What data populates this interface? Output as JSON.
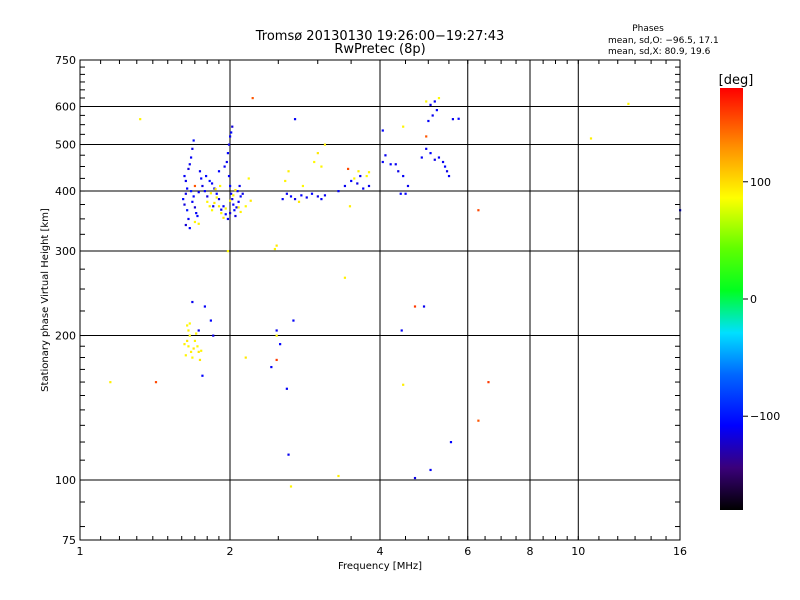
{
  "chart_data": {
    "type": "scatter",
    "title": "Tromsø 20130130 19:26:00−19:27:43",
    "subtitle": "RwPretec (8p)",
    "xlabel": "Frequency [MHz]",
    "ylabel": "Stationary phase Virtual Height [km]",
    "x_scale": "log",
    "y_scale": "log",
    "xlim": [
      1,
      16
    ],
    "ylim": [
      75,
      750
    ],
    "x_tick_labels": [
      "1",
      "2",
      "4",
      "6",
      "8",
      "10",
      "16"
    ],
    "x_tick_values": [
      1,
      2,
      4,
      6,
      8,
      10,
      16
    ],
    "y_tick_labels": [
      "75",
      "100",
      "200",
      "300",
      "400",
      "500",
      "600",
      "750"
    ],
    "y_tick_values": [
      75,
      100,
      200,
      300,
      400,
      500,
      600,
      750
    ],
    "grid": true,
    "annotations": {
      "heading": "Phases",
      "line1": "mean, sd,O: −96.5, 17.1",
      "line2": "mean, sd,X:  80.9, 19.6"
    },
    "colorbar": {
      "label": "[deg]",
      "tick_labels": [
        "100",
        "0",
        "−100"
      ],
      "tick_values": [
        100,
        0,
        -100
      ],
      "range": [
        -180,
        180
      ]
    },
    "series": [
      {
        "values": [
          [
            1.62,
            430,
            -110
          ],
          [
            1.63,
            420,
            -112
          ],
          [
            1.64,
            405,
            -108
          ],
          [
            1.63,
            395,
            -115
          ],
          [
            1.61,
            385,
            -105
          ],
          [
            1.62,
            375,
            -118
          ],
          [
            1.64,
            365,
            -100
          ],
          [
            1.65,
            350,
            -110
          ],
          [
            1.63,
            340,
            -120
          ],
          [
            1.66,
            335,
            -108
          ],
          [
            1.67,
            470,
            -110
          ],
          [
            1.68,
            490,
            -115
          ],
          [
            1.69,
            510,
            -105
          ],
          [
            1.66,
            455,
            -112
          ],
          [
            1.65,
            445,
            -118
          ],
          [
            1.67,
            400,
            -100
          ],
          [
            1.68,
            380,
            -110
          ],
          [
            1.7,
            370,
            -120
          ],
          [
            1.71,
            360,
            -110
          ],
          [
            1.72,
            355,
            -105
          ],
          [
            1.74,
            440,
            -112
          ],
          [
            1.75,
            425,
            -108
          ],
          [
            1.76,
            410,
            -115
          ],
          [
            1.78,
            400,
            -110
          ],
          [
            1.8,
            390,
            -118
          ],
          [
            1.82,
            420,
            -100
          ],
          [
            1.84,
            415,
            -110
          ],
          [
            1.86,
            405,
            -112
          ],
          [
            1.88,
            395,
            -108
          ],
          [
            1.9,
            385,
            -115
          ],
          [
            1.95,
            450,
            -110
          ],
          [
            1.97,
            460,
            -112
          ],
          [
            1.98,
            480,
            -108
          ],
          [
            1.99,
            500,
            -115
          ],
          [
            2.0,
            520,
            -110
          ],
          [
            2.01,
            530,
            -105
          ],
          [
            2.02,
            545,
            -118
          ],
          [
            1.99,
            430,
            -110
          ],
          [
            2.0,
            410,
            -108
          ],
          [
            2.01,
            395,
            -112
          ],
          [
            2.02,
            385,
            -115
          ],
          [
            2.03,
            375,
            -110
          ],
          [
            2.04,
            365,
            -105
          ],
          [
            2.05,
            355,
            -118
          ],
          [
            2.06,
            370,
            -110
          ],
          [
            2.08,
            380,
            -112
          ],
          [
            2.1,
            390,
            -108
          ],
          [
            2.12,
            395,
            -115
          ],
          [
            2.0,
            360,
            -120
          ],
          [
            1.98,
            350,
            -110
          ],
          [
            1.94,
            372,
            -110
          ],
          [
            1.92,
            366,
            -112
          ],
          [
            1.96,
            358,
            -104
          ],
          [
            2.07,
            400,
            -110
          ],
          [
            2.09,
            410,
            -112
          ],
          [
            1.73,
            398,
            -112
          ],
          [
            1.69,
            390,
            -108
          ],
          [
            1.79,
            430,
            -105
          ],
          [
            1.85,
            372,
            -112
          ],
          [
            1.9,
            440,
            -108
          ],
          [
            2.55,
            385,
            -110
          ],
          [
            2.6,
            395,
            -112
          ],
          [
            2.65,
            390,
            -108
          ],
          [
            2.7,
            385,
            -115
          ],
          [
            2.78,
            392,
            -110
          ],
          [
            2.85,
            388,
            -112
          ],
          [
            2.92,
            395,
            -108
          ],
          [
            3.0,
            390,
            -115
          ],
          [
            3.05,
            385,
            -110
          ],
          [
            3.1,
            392,
            -112
          ],
          [
            3.3,
            400,
            -110
          ],
          [
            3.4,
            410,
            -112
          ],
          [
            3.5,
            420,
            -108
          ],
          [
            3.6,
            415,
            -115
          ],
          [
            3.7,
            405,
            -110
          ],
          [
            3.8,
            410,
            -112
          ],
          [
            4.05,
            460,
            -110
          ],
          [
            4.1,
            475,
            -112
          ],
          [
            4.2,
            455,
            -108
          ],
          [
            4.35,
            440,
            -115
          ],
          [
            4.45,
            430,
            -110
          ],
          [
            4.55,
            410,
            -112
          ],
          [
            4.4,
            395,
            -108
          ],
          [
            4.85,
            470,
            -110
          ],
          [
            4.95,
            490,
            -112
          ],
          [
            5.05,
            480,
            -108
          ],
          [
            5.15,
            465,
            -115
          ],
          [
            5.25,
            470,
            -110
          ],
          [
            5.35,
            460,
            -112
          ],
          [
            5.4,
            450,
            -108
          ],
          [
            5.45,
            440,
            -115
          ],
          [
            5.5,
            430,
            -110
          ],
          [
            5.0,
            560,
            -110
          ],
          [
            5.1,
            575,
            -112
          ],
          [
            5.2,
            590,
            -108
          ],
          [
            5.05,
            605,
            -115
          ],
          [
            5.15,
            615,
            -110
          ],
          [
            5.6,
            565,
            -112
          ],
          [
            5.75,
            566,
            -108
          ],
          [
            1.78,
            230,
            -110
          ],
          [
            1.68,
            235,
            -112
          ],
          [
            1.83,
            215,
            -108
          ],
          [
            1.73,
            205,
            -115
          ],
          [
            2.68,
            215,
            -110
          ],
          [
            2.48,
            205,
            -112
          ],
          [
            2.52,
            192,
            -108
          ],
          [
            2.42,
            172,
            -110
          ],
          [
            4.42,
            205,
            -110
          ],
          [
            4.9,
            230,
            -112
          ],
          [
            5.55,
            120,
            -108
          ],
          [
            5.05,
            105,
            -110
          ],
          [
            4.7,
            101,
            -115
          ],
          [
            2.62,
            113,
            -112
          ],
          [
            2.6,
            155,
            -110
          ],
          [
            1.76,
            165,
            -108
          ],
          [
            2.7,
            565,
            -110
          ],
          [
            3.65,
            430,
            -112
          ],
          [
            4.05,
            535,
            -108
          ],
          [
            4.5,
            395,
            -110
          ],
          [
            4.3,
            455,
            -112
          ],
          [
            1.85,
            200,
            -115
          ],
          [
            16.0,
            365,
            -110
          ]
        ]
      },
      {
        "values": [
          [
            1.64,
            210,
            90
          ],
          [
            1.65,
            205,
            92
          ],
          [
            1.66,
            200,
            88
          ],
          [
            1.64,
            195,
            95
          ],
          [
            1.65,
            190,
            90
          ],
          [
            1.67,
            185,
            92
          ],
          [
            1.68,
            180,
            88
          ],
          [
            1.69,
            188,
            95
          ],
          [
            1.7,
            195,
            90
          ],
          [
            1.71,
            202,
            92
          ],
          [
            1.72,
            190,
            88
          ],
          [
            1.73,
            185,
            95
          ],
          [
            1.63,
            182,
            90
          ],
          [
            1.62,
            192,
            92
          ],
          [
            1.66,
            212,
            88
          ],
          [
            1.74,
            178,
            95
          ],
          [
            1.75,
            186,
            90
          ],
          [
            1.8,
            380,
            90
          ],
          [
            1.82,
            372,
            92
          ],
          [
            1.84,
            365,
            88
          ],
          [
            1.86,
            378,
            95
          ],
          [
            1.88,
            388,
            90
          ],
          [
            1.9,
            372,
            92
          ],
          [
            1.92,
            360,
            88
          ],
          [
            1.94,
            352,
            95
          ],
          [
            1.96,
            368,
            90
          ],
          [
            2.0,
            382,
            92
          ],
          [
            2.03,
            392,
            88
          ],
          [
            2.05,
            402,
            95
          ],
          [
            2.08,
            370,
            90
          ],
          [
            2.1,
            362,
            92
          ],
          [
            2.15,
            372,
            88
          ],
          [
            2.2,
            382,
            95
          ],
          [
            1.83,
            396,
            90
          ],
          [
            1.87,
            404,
            92
          ],
          [
            1.91,
            410,
            88
          ],
          [
            2.58,
            420,
            90
          ],
          [
            2.62,
            440,
            92
          ],
          [
            2.95,
            460,
            88
          ],
          [
            3.0,
            480,
            95
          ],
          [
            3.05,
            450,
            90
          ],
          [
            3.1,
            500,
            92
          ],
          [
            2.8,
            410,
            88
          ],
          [
            2.75,
            380,
            95
          ],
          [
            3.55,
            425,
            90
          ],
          [
            3.62,
            440,
            92
          ],
          [
            1.7,
            345,
            90
          ],
          [
            1.73,
            342,
            92
          ],
          [
            2.18,
            425,
            88
          ],
          [
            2.48,
            308,
            95
          ],
          [
            2.46,
            303,
            90
          ],
          [
            3.4,
            264,
            92
          ],
          [
            3.8,
            438,
            90
          ],
          [
            3.76,
            430,
            88
          ],
          [
            3.48,
            372,
            92
          ],
          [
            4.45,
            545,
            90
          ],
          [
            4.45,
            158,
            92
          ],
          [
            5.25,
            625,
            88
          ],
          [
            1.32,
            565,
            90
          ],
          [
            1.15,
            160,
            92
          ],
          [
            1.98,
            300,
            88
          ],
          [
            2.15,
            180,
            95
          ],
          [
            2.65,
            97,
            90
          ],
          [
            3.3,
            102,
            92
          ],
          [
            4.95,
            615,
            88
          ],
          [
            2.48,
            200,
            90
          ],
          [
            10.6,
            515,
            92
          ],
          [
            12.6,
            608,
            88
          ]
        ]
      },
      {
        "values": [
          [
            2.22,
            625,
            150
          ],
          [
            4.7,
            230,
            160
          ],
          [
            6.3,
            365,
            155
          ],
          [
            6.3,
            133,
            150
          ],
          [
            6.6,
            160,
            160
          ],
          [
            1.42,
            160,
            155
          ],
          [
            1.7,
            410,
            150
          ],
          [
            2.48,
            178,
            160
          ],
          [
            3.45,
            445,
            155
          ],
          [
            4.95,
            520,
            150
          ]
        ]
      }
    ]
  }
}
